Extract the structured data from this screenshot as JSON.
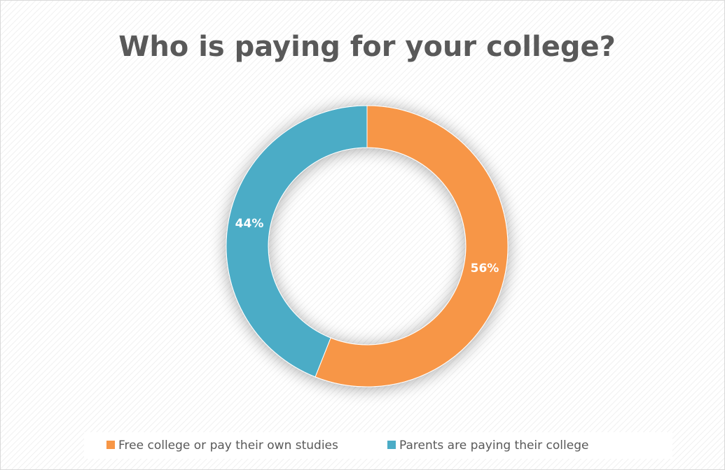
{
  "chart_data": {
    "type": "donut",
    "title": "Who is paying for your college?",
    "categories": [
      "Free college or pay their own studies",
      "Parents are paying their college"
    ],
    "values": [
      56,
      44
    ],
    "value_labels": [
      "56%",
      "44%"
    ],
    "colors": [
      "#f79646",
      "#4bacc6"
    ],
    "legend": "bottom"
  }
}
